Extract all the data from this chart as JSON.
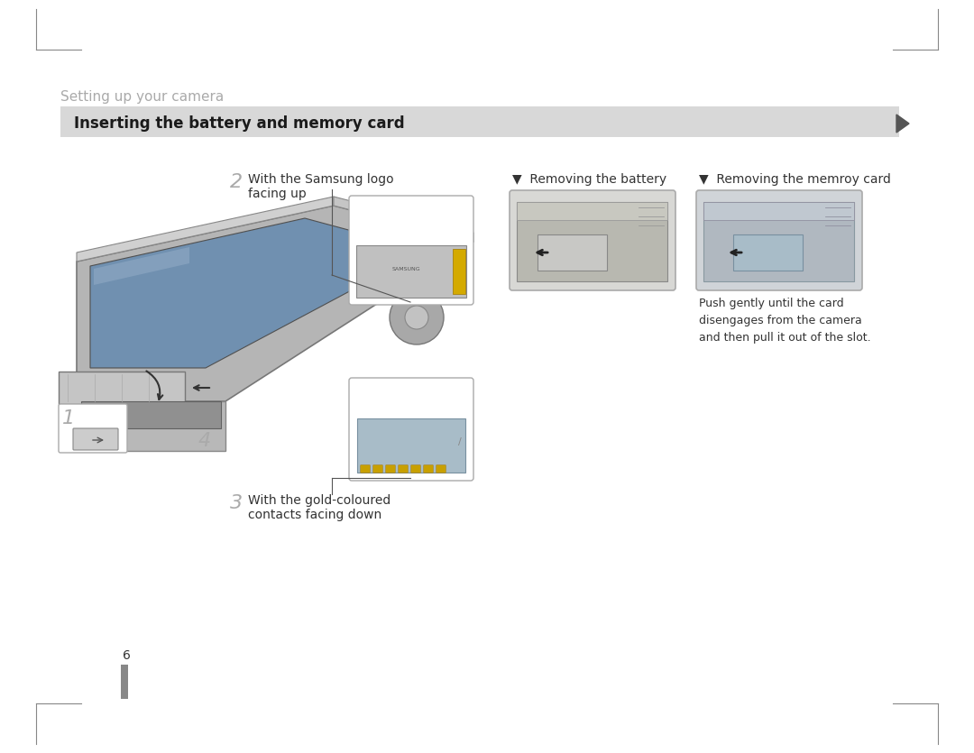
{
  "bg_color": "#ffffff",
  "page_title": "Setting up your camera",
  "page_title_color": "#aaaaaa",
  "page_title_fontsize": 11,
  "section_bar_color": "#d8d8d8",
  "section_bar_text": "Inserting the battery and memory card",
  "section_bar_text_color": "#1a1a1a",
  "section_bar_fontsize": 12,
  "step2_label": "2",
  "step2_text": "With the Samsung logo\nfacing up",
  "step3_label": "3",
  "step3_text": "With the gold-coloured\ncontacts facing down",
  "remove_battery_label": "▼  Removing the battery",
  "remove_memcard_label": "▼  Removing the memroy card",
  "remove_text": "Push gently until the card\ndisengages from the camera\nand then pull it out of the slot.",
  "text_color": "#333333",
  "step_num_color": "#aaaaaa",
  "label_fontsize": 10,
  "body_fontsize": 9,
  "step_num_fontsize": 16,
  "page_number": "6",
  "page_margin_color": "#888888"
}
